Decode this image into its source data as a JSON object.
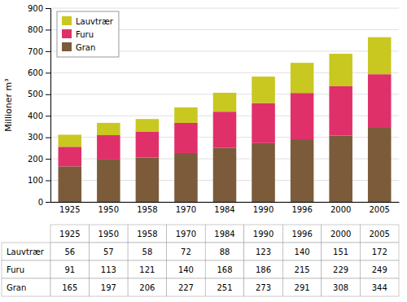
{
  "chart_data": {
    "type": "bar",
    "stacked": true,
    "categories": [
      "1925",
      "1950",
      "1958",
      "1970",
      "1984",
      "1990",
      "1996",
      "2000",
      "2005"
    ],
    "series": [
      {
        "name": "Gran",
        "color": "#7B5B3A",
        "values": [
          165,
          197,
          206,
          227,
          251,
          273,
          291,
          308,
          344
        ]
      },
      {
        "name": "Furu",
        "color": "#E0306A",
        "values": [
          91,
          113,
          121,
          140,
          168,
          186,
          215,
          229,
          249
        ]
      },
      {
        "name": "Lauvtrær",
        "color": "#C8C820",
        "values": [
          56,
          57,
          58,
          72,
          88,
          123,
          140,
          151,
          172
        ]
      }
    ],
    "y_label": "Millioner  m³",
    "ylim": [
      0,
      900
    ],
    "yticks": [
      0,
      100,
      200,
      300,
      400,
      500,
      600,
      700,
      800,
      900
    ],
    "grid": true,
    "legend": "upper left"
  }
}
